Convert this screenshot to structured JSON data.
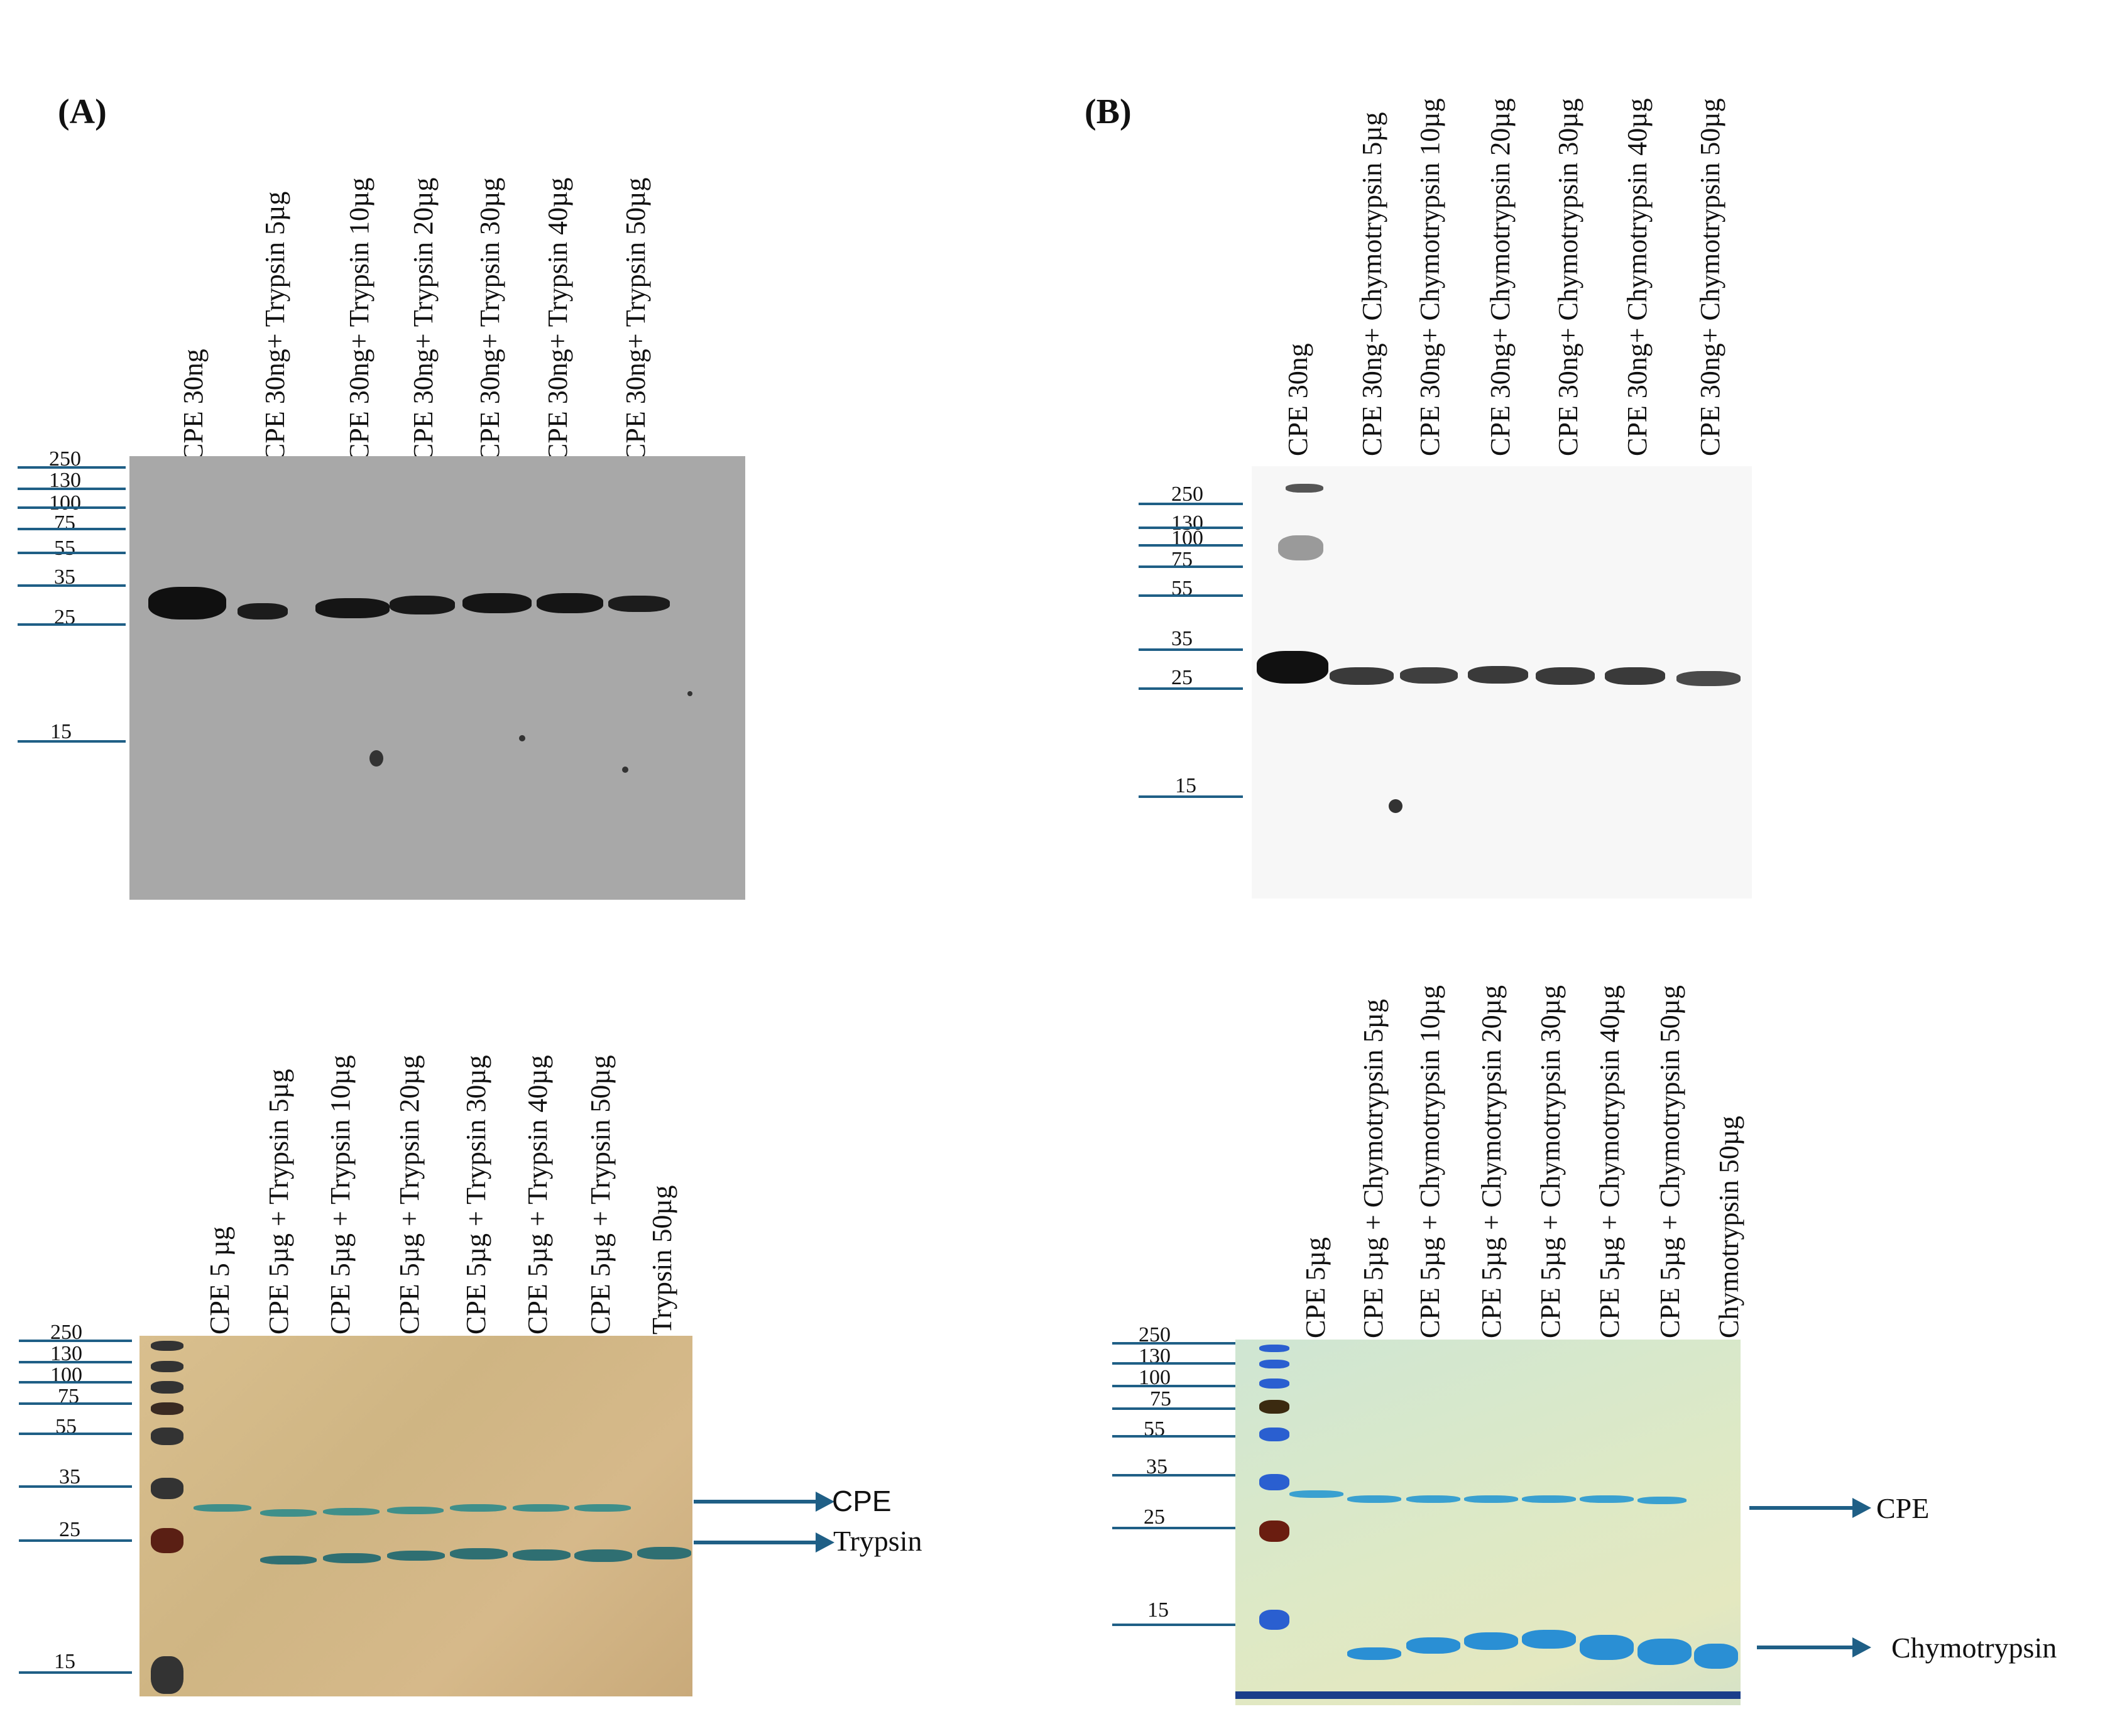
{
  "panels": {
    "a": {
      "label": "(A)"
    },
    "b": {
      "label": "(B)"
    }
  },
  "a_top": {
    "lanes": [
      "CPE 30ng",
      "CPE 30ng+ Trypsin 5µg",
      "CPE 30ng+ Trypsin 10µg",
      "CPE 30ng+ Trypsin 20µg",
      "CPE 30ng+ Trypsin 30µg",
      "CPE 30ng+ Trypsin 40µg",
      "CPE 30ng+ Trypsin 50µg"
    ],
    "markers": [
      "250",
      "130",
      "100",
      "75",
      "55",
      "35",
      "25",
      "15"
    ]
  },
  "b_top": {
    "lanes": [
      "CPE 30ng",
      "CPE 30ng+ Chymotrypsin 5µg",
      "CPE 30ng+ Chymotrypsin 10µg",
      "CPE 30ng+ Chymotrypsin 20µg",
      "CPE 30ng+ Chymotrypsin 30µg",
      "CPE 30ng+ Chymotrypsin 40µg",
      "CPE 30ng+ Chymotrypsin 50µg"
    ],
    "markers": [
      "250",
      "130",
      "100",
      "75",
      "55",
      "35",
      "25",
      "15"
    ]
  },
  "a_bottom": {
    "lanes": [
      "CPE 5 µg",
      "CPE 5µg + Trypsin 5µg",
      "CPE 5µg + Trypsin 10µg",
      "CPE 5µg + Trypsin 20µg",
      "CPE  5µg + Trypsin 30µg",
      "CPE  5µg + Trypsin 40µg",
      "CPE 5µg + Trypsin 50µg",
      "Trypsin 50µg"
    ],
    "markers": [
      "250",
      "130",
      "100",
      "75",
      "55",
      "35",
      "25",
      "15"
    ],
    "arrows": [
      "CPE",
      "Trypsin"
    ]
  },
  "b_bottom": {
    "lanes": [
      "CPE 5µg",
      "CPE 5µg + Chymotrypsin 5µg",
      "CPE 5µg + Chymotrypsin 10µg",
      "CPE 5µg + Chymotrypsin 20µg",
      "CPE 5µg + Chymotrypsin 30µg",
      "CPE 5µg + Chymotrypsin 40µg",
      "CPE 5µg + Chymotrypsin 50µg",
      "Chymotrypsin 50µg"
    ],
    "markers": [
      "250",
      "130",
      "100",
      "75",
      "55",
      "35",
      "25",
      "15"
    ],
    "arrows": [
      "CPE",
      "Chymotrypsin"
    ]
  },
  "colors": {
    "marker_line": "#1f5f86",
    "band_dark": "#1a1a1a",
    "band_teal": "#3f8f8a",
    "band_blue": "#2a8fd4"
  }
}
